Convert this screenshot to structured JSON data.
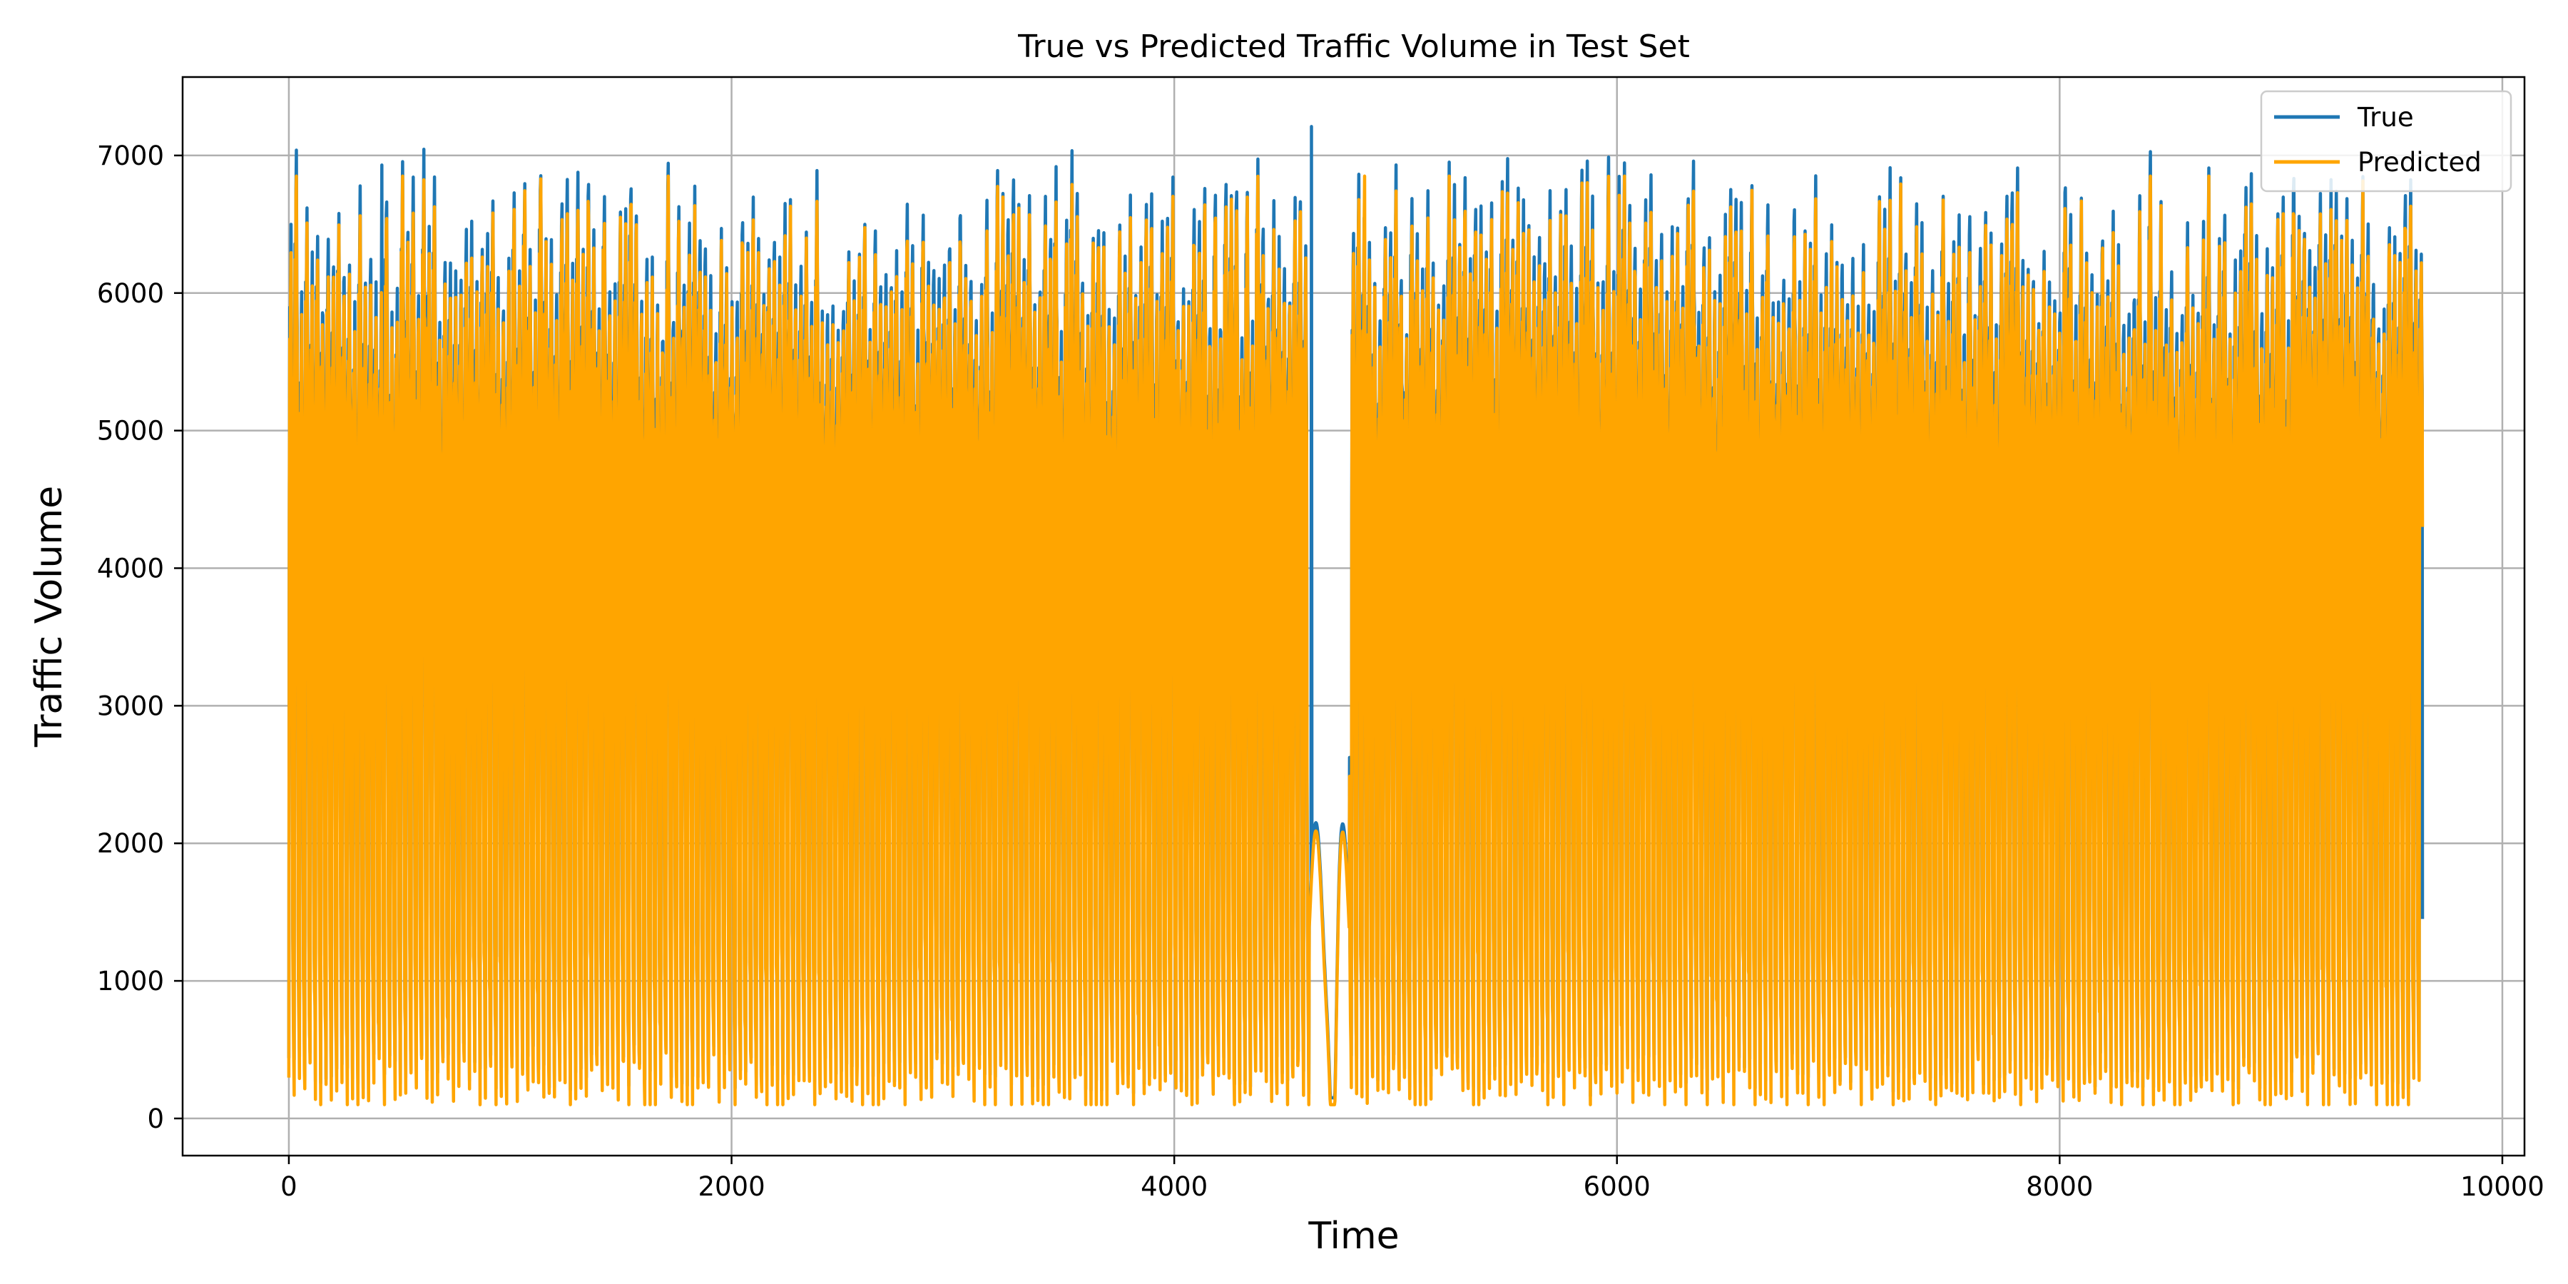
{
  "chart_data": {
    "type": "line",
    "title": "True vs Predicted Traffic Volume in Test Set",
    "xlabel": "Time",
    "ylabel": "Traffic Volume",
    "xlim": [
      -480,
      10100
    ],
    "ylim": [
      -270,
      7570
    ],
    "x_ticks": [
      0,
      2000,
      4000,
      6000,
      8000,
      10000
    ],
    "y_ticks": [
      0,
      1000,
      2000,
      3000,
      4000,
      5000,
      6000,
      7000
    ],
    "grid": true,
    "legend_position": "top-right",
    "n_points": 9640,
    "series": [
      {
        "name": "True",
        "color": "#1f77b4",
        "summary": {
          "x_start": 0,
          "x_end": 9639,
          "min": 150,
          "max": 7210,
          "typical_peak": 6500,
          "typical_trough": 300,
          "end_value": 1450
        },
        "notable_points": [
          {
            "x": 4620,
            "y": 7210
          },
          {
            "x": 420,
            "y": 6930
          },
          {
            "x": 4700,
            "y": 1450
          },
          {
            "x": 4720,
            "y": 200
          },
          {
            "x": 9630,
            "y": 1750
          }
        ]
      },
      {
        "name": "Predicted",
        "color": "#ffa500",
        "summary": {
          "x_start": 0,
          "x_end": 9639,
          "min": 100,
          "max": 6850,
          "typical_peak": 6350,
          "typical_trough": 330,
          "end_value": 4300
        },
        "notable_points": [
          {
            "x": 4720,
            "y": 100
          },
          {
            "x": 4860,
            "y": 6850
          },
          {
            "x": 9630,
            "y": 4300
          }
        ]
      }
    ]
  }
}
